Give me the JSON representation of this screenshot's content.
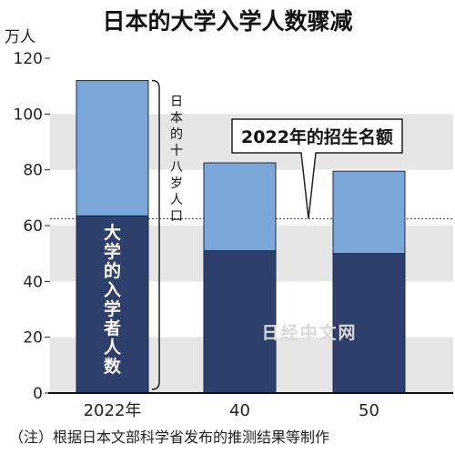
{
  "chart_data": {
    "type": "bar",
    "stacked": true,
    "title": "日本的大学入学人数骤减",
    "unit": "万人",
    "categories": [
      "2022年",
      "40",
      "50"
    ],
    "series": [
      {
        "name": "大学的入学者人数",
        "values": [
          63.5,
          51,
          50
        ],
        "color": "#2e3f6b"
      },
      {
        "values": [
          48.5,
          31.5,
          29.5
        ],
        "color": "#7aa6d8"
      }
    ],
    "totals": [
      112,
      82.5,
      79.5
    ],
    "ylim": [
      0,
      120
    ],
    "yticks": [
      "0",
      "20",
      "40",
      "60",
      "80",
      "100",
      "120"
    ],
    "grid": "alternating-bands",
    "reference_line": {
      "value": 62.5,
      "label": "2022年的招生名额"
    },
    "bracket_label": "日本的十八岁人口",
    "note": "（注）根据日本文部科学省发布的推测结果等制作",
    "watermark": "日经中文网"
  }
}
